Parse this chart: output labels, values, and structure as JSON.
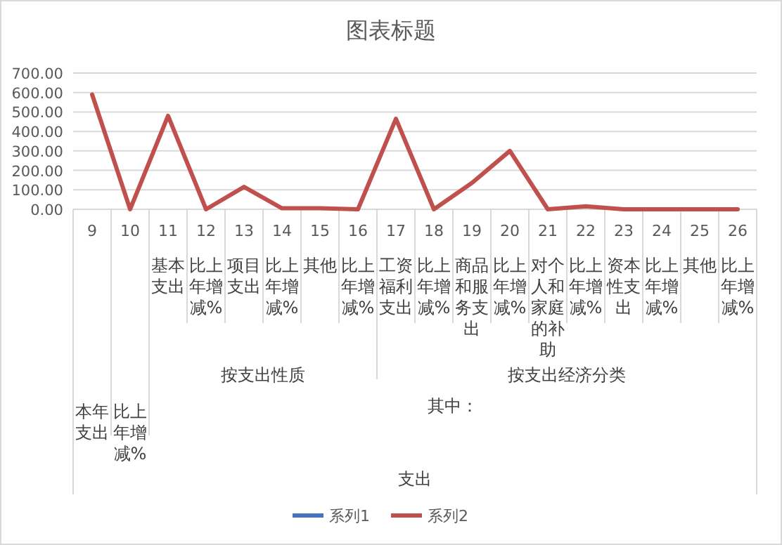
{
  "chart_data": {
    "type": "line",
    "title": "图表标题",
    "categories": [
      "9",
      "10",
      "11",
      "12",
      "13",
      "14",
      "15",
      "16",
      "17",
      "18",
      "19",
      "20",
      "21",
      "22",
      "23",
      "24",
      "25",
      "26"
    ],
    "series": [
      {
        "name": "系列1",
        "color": "#4472c4",
        "values": [
          null,
          null,
          null,
          null,
          null,
          null,
          null,
          null,
          null,
          null,
          null,
          null,
          null,
          null,
          null,
          null,
          null,
          null
        ]
      },
      {
        "name": "系列2",
        "color": "#c0504d",
        "values": [
          590,
          0,
          480,
          0,
          115,
          5,
          5,
          0,
          465,
          0,
          135,
          300,
          0,
          15,
          0,
          0,
          0,
          0
        ]
      }
    ],
    "ylim": [
      0,
      700
    ],
    "yticks": [
      {
        "value": 0,
        "label": "0.00"
      },
      {
        "value": 100,
        "label": "100.00"
      },
      {
        "value": 200,
        "label": "200.00"
      },
      {
        "value": 300,
        "label": "300.00"
      },
      {
        "value": 400,
        "label": "400.00"
      },
      {
        "value": 500,
        "label": "500.00"
      },
      {
        "value": 600,
        "label": "600.00"
      },
      {
        "value": 700,
        "label": "700.00"
      }
    ],
    "grid": "y",
    "legend": "bottom",
    "line_style": "solid",
    "annotations": [
      "基本支出",
      "比上年增减%",
      "项目支出",
      "比上年增减%",
      "其他",
      "比上年增减%",
      "工资福利支出",
      "比上年增减%",
      "商品和服务支出",
      "比上年增减%",
      "对个人和家庭的补助",
      "比上年增减%",
      "资本性支出",
      "比上年增减%",
      "其他",
      "比上年增减%",
      "本年支出",
      "比上年增减%",
      "按支出性质",
      "按支出经济分类",
      "其中：",
      "支出"
    ]
  }
}
